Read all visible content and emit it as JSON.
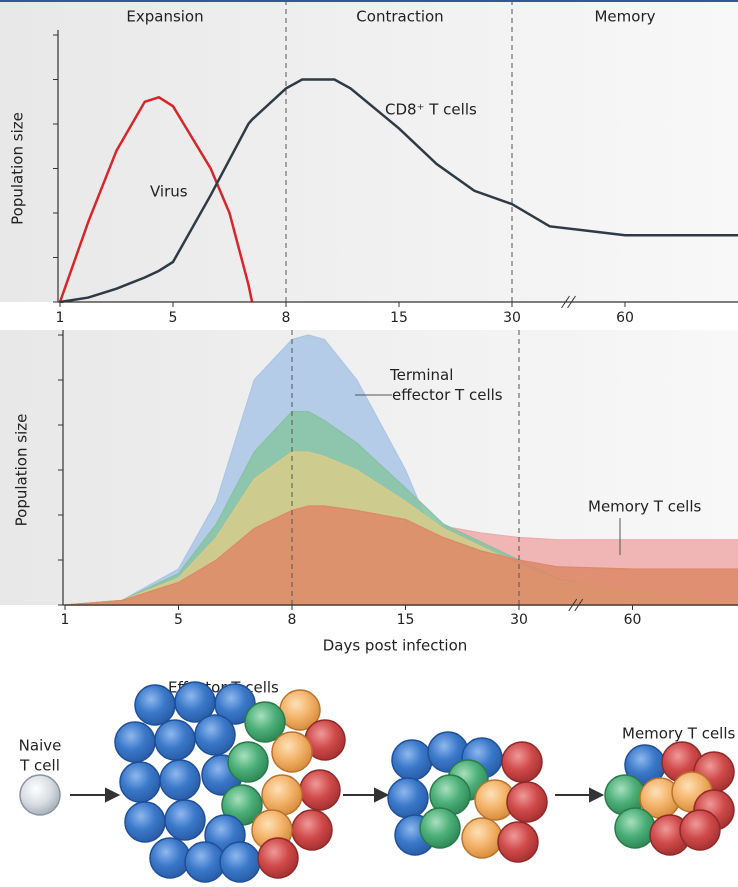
{
  "chart_data": [
    {
      "type": "line",
      "phases": [
        "Expansion",
        "Contraction",
        "Memory"
      ],
      "ylabel": "Population size",
      "x": [
        1,
        2,
        3,
        4,
        4.5,
        5,
        6,
        6.5,
        7,
        7.1,
        8,
        9,
        11,
        12,
        15,
        20,
        25,
        30,
        40,
        50,
        60,
        90
      ],
      "series": [
        {
          "name": "Virus",
          "color": "#d7262b",
          "values": [
            0,
            1.8,
            3.4,
            4.5,
            4.6,
            4.4,
            3.0,
            2.0,
            0.4,
            0,
            null,
            null,
            null,
            null,
            null,
            null,
            null,
            null,
            null,
            null,
            null,
            null
          ]
        },
        {
          "name": "CD8⁺ T cells",
          "color": "#2f3a45",
          "values": [
            0,
            0.1,
            0.3,
            0.55,
            0.7,
            0.9,
            2.4,
            3.2,
            4.0,
            4.1,
            4.8,
            5.0,
            5.0,
            4.8,
            3.9,
            3.1,
            2.5,
            2.2,
            1.7,
            1.6,
            1.5,
            1.5
          ]
        }
      ],
      "xlim": [
        1,
        90
      ],
      "xticks": [
        1,
        5,
        8,
        15,
        30,
        60
      ],
      "ylim": [
        0,
        6
      ],
      "yticks": [
        0,
        1,
        2,
        3,
        4,
        5,
        6
      ],
      "vlines": [
        8,
        30
      ]
    },
    {
      "type": "area",
      "ylabel": "Population size",
      "xlabel": "Days post infection",
      "x": [
        1,
        3,
        5,
        6,
        7,
        8,
        9,
        10,
        12,
        15,
        20,
        25,
        30,
        40,
        60,
        90
      ],
      "series": [
        {
          "name": "Terminal effector T cells",
          "color": "#a9c6e6",
          "values": [
            0,
            0.1,
            0.8,
            2.3,
            5.0,
            5.9,
            6.0,
            5.9,
            5.0,
            3.0,
            1.0,
            0,
            0,
            0,
            0,
            0
          ]
        },
        {
          "name": "Memory T cells",
          "color": "#eeaaaa",
          "values": [
            null,
            null,
            null,
            null,
            null,
            null,
            null,
            null,
            null,
            1.9,
            1.75,
            1.6,
            1.5,
            1.45,
            1.45,
            1.45
          ]
        },
        {
          "color": "#86c3a2",
          "values": [
            0,
            0.1,
            0.7,
            1.8,
            3.4,
            4.3,
            4.3,
            4.1,
            3.6,
            2.6,
            1.8,
            1.4,
            1.0,
            0.6,
            0.25,
            0.05
          ]
        },
        {
          "color": "#d9cb88",
          "values": [
            0,
            0.1,
            0.6,
            1.5,
            2.8,
            3.4,
            3.4,
            3.3,
            3.0,
            2.3,
            1.7,
            1.3,
            0.9,
            0.55,
            0.3,
            0.05
          ]
        },
        {
          "color": "#de8866",
          "values": [
            0,
            0.1,
            0.5,
            1.0,
            1.7,
            2.1,
            2.2,
            2.2,
            2.1,
            1.9,
            1.5,
            1.2,
            1.0,
            0.85,
            0.8,
            0.8
          ]
        }
      ],
      "xlim": [
        1,
        90
      ],
      "xticks": [
        1,
        5,
        8,
        15,
        30,
        60
      ],
      "ylim": [
        0,
        6
      ],
      "yticks": [
        0,
        1,
        2,
        3,
        4,
        5,
        6
      ],
      "vlines": [
        8,
        30
      ]
    }
  ],
  "diagram": {
    "naive": [
      "Naive",
      "T cell"
    ],
    "effector": "Effector T cells",
    "memory": "Memory T cells"
  }
}
